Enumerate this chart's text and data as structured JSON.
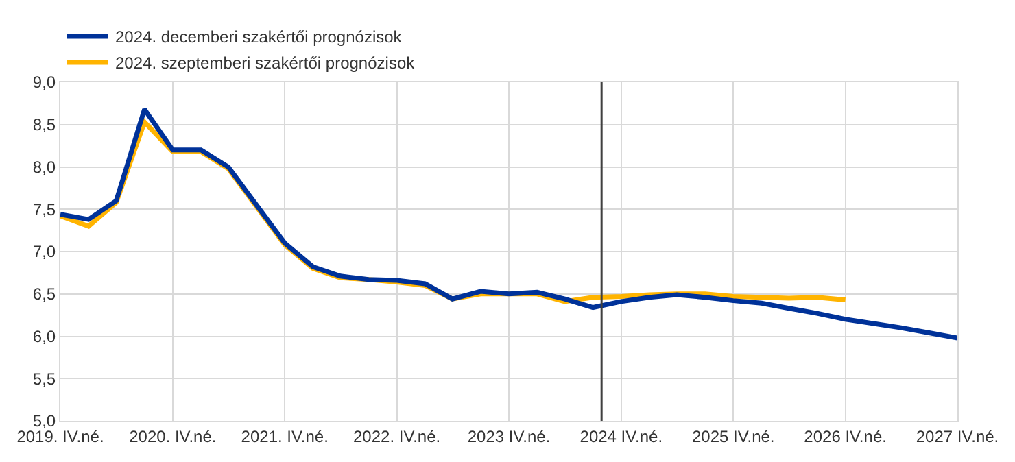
{
  "chart_data": {
    "type": "line",
    "x": [
      "2019-11-15",
      "2020-02-15",
      "2020-05-15",
      "2020-08-15",
      "2020-11-15",
      "2021-02-15",
      "2021-05-15",
      "2021-08-15",
      "2021-11-15",
      "2022-02-15",
      "2022-05-15",
      "2022-08-15",
      "2022-11-15",
      "2023-02-15",
      "2023-05-15",
      "2023-08-15",
      "2023-11-15",
      "2024-02-15",
      "2024-05-15",
      "2024-08-15",
      "2024-11-15",
      "2025-02-15",
      "2025-05-15",
      "2025-08-15",
      "2025-11-15",
      "2026-02-15",
      "2026-05-15",
      "2026-08-15",
      "2026-11-15",
      "2027-02-15",
      "2027-05-15",
      "2027-08-15",
      "2027-11-15"
    ],
    "series": [
      {
        "name": "2024. decemberi szakértői prognózisok",
        "color": "#003299",
        "values": [
          7.44,
          7.38,
          7.6,
          8.68,
          8.2,
          8.2,
          8.0,
          7.55,
          7.1,
          6.82,
          6.71,
          6.67,
          6.66,
          6.62,
          6.44,
          6.53,
          6.5,
          6.52,
          6.44,
          6.34,
          6.41,
          6.46,
          6.49,
          6.46,
          6.42,
          6.39,
          6.33,
          6.27,
          6.2,
          6.15,
          6.1,
          6.04,
          5.98
        ]
      },
      {
        "name": "2024. szeptemberi szakértői prognózisok",
        "color": "#ffb400",
        "values": [
          7.42,
          7.3,
          7.58,
          8.53,
          8.18,
          8.18,
          7.98,
          7.53,
          7.08,
          6.8,
          6.69,
          6.67,
          6.64,
          6.6,
          6.44,
          6.5,
          6.5,
          6.5,
          6.41,
          6.46,
          6.47,
          6.49,
          6.5,
          6.5,
          6.47,
          6.46,
          6.45,
          6.46,
          6.43,
          null,
          null,
          null,
          null
        ]
      }
    ],
    "xlim": [
      "2019-11-15",
      "2027-11-15"
    ],
    "xticks": [
      {
        "value": "2019-11-15",
        "label": "2019. IV.né."
      },
      {
        "value": "2020-11-15",
        "label": "2020. IV.né."
      },
      {
        "value": "2021-11-15",
        "label": "2021. IV.né."
      },
      {
        "value": "2022-11-15",
        "label": "2022. IV.né."
      },
      {
        "value": "2023-11-15",
        "label": "2023 IV.né."
      },
      {
        "value": "2024-11-15",
        "label": "2024 IV.né."
      },
      {
        "value": "2025-11-15",
        "label": "2025 IV.né."
      },
      {
        "value": "2026-11-15",
        "label": "2026 IV.né."
      },
      {
        "value": "2027-11-15",
        "label": "2027 IV.né."
      }
    ],
    "ylim": [
      5.0,
      9.0
    ],
    "yticks": [
      {
        "value": 5.0,
        "label": "5,0"
      },
      {
        "value": 5.5,
        "label": "5,5"
      },
      {
        "value": 6.0,
        "label": "6,0"
      },
      {
        "value": 6.5,
        "label": "6,5"
      },
      {
        "value": 7.0,
        "label": "7,0"
      },
      {
        "value": 7.5,
        "label": "7,5"
      },
      {
        "value": 8.0,
        "label": "8,0"
      },
      {
        "value": 8.5,
        "label": "8,5"
      },
      {
        "value": 9.0,
        "label": "9,0"
      }
    ],
    "ref_lines": [
      {
        "axis": "x",
        "value": "2024-09-12",
        "color": "#404040",
        "line_style": "solid"
      }
    ],
    "grid": true,
    "legend": "top left",
    "marker": "none",
    "line_style": "solid"
  }
}
